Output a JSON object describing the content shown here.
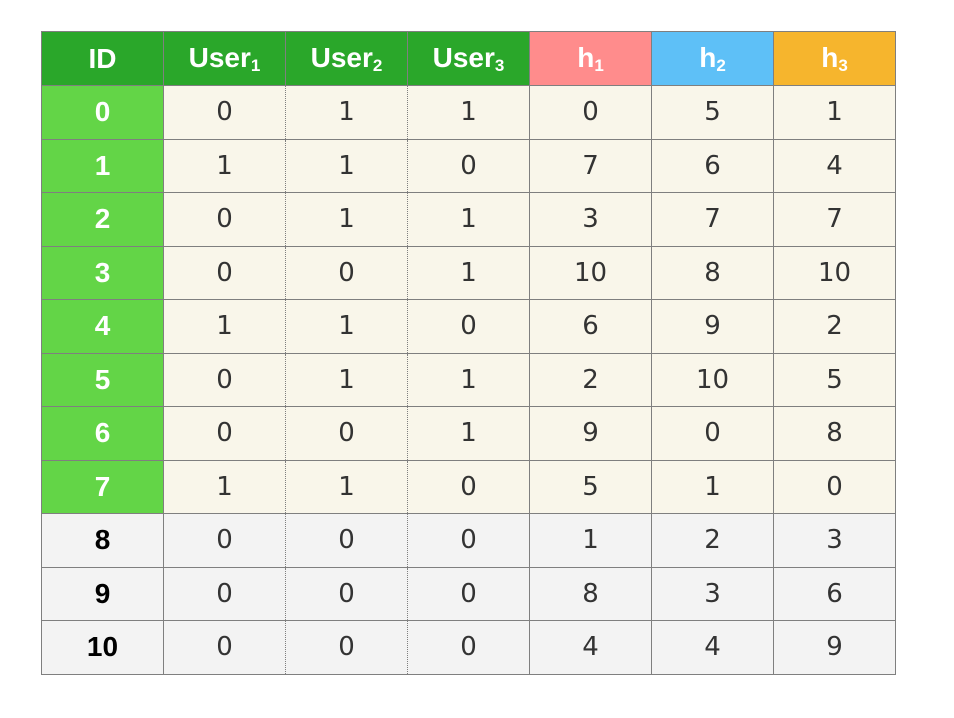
{
  "header": {
    "id": "ID",
    "user1": {
      "base": "User",
      "sub": "1"
    },
    "user2": {
      "base": "User",
      "sub": "2"
    },
    "user3": {
      "base": "User",
      "sub": "3"
    },
    "h1": {
      "base": "h",
      "sub": "1"
    },
    "h2": {
      "base": "h",
      "sub": "2"
    },
    "h3": {
      "base": "h",
      "sub": "3"
    }
  },
  "colors": {
    "header_green": "#2aa72a",
    "active_id_green": "#63d547",
    "h1_red": "#ff8c8c",
    "h2_blue": "#5ec0f7",
    "h3_orange": "#f6b52d",
    "active_cell_bg": "#f9f6ea",
    "inactive_bg": "#f3f3f3"
  },
  "active_row_count": 8,
  "rows": [
    {
      "id": "0",
      "user1": "0",
      "user2": "1",
      "user3": "1",
      "h1": "0",
      "h2": "5",
      "h3": "1"
    },
    {
      "id": "1",
      "user1": "1",
      "user2": "1",
      "user3": "0",
      "h1": "7",
      "h2": "6",
      "h3": "4"
    },
    {
      "id": "2",
      "user1": "0",
      "user2": "1",
      "user3": "1",
      "h1": "3",
      "h2": "7",
      "h3": "7"
    },
    {
      "id": "3",
      "user1": "0",
      "user2": "0",
      "user3": "1",
      "h1": "10",
      "h2": "8",
      "h3": "10"
    },
    {
      "id": "4",
      "user1": "1",
      "user2": "1",
      "user3": "0",
      "h1": "6",
      "h2": "9",
      "h3": "2"
    },
    {
      "id": "5",
      "user1": "0",
      "user2": "1",
      "user3": "1",
      "h1": "2",
      "h2": "10",
      "h3": "5"
    },
    {
      "id": "6",
      "user1": "0",
      "user2": "0",
      "user3": "1",
      "h1": "9",
      "h2": "0",
      "h3": "8"
    },
    {
      "id": "7",
      "user1": "1",
      "user2": "1",
      "user3": "0",
      "h1": "5",
      "h2": "1",
      "h3": "0"
    },
    {
      "id": "8",
      "user1": "0",
      "user2": "0",
      "user3": "0",
      "h1": "1",
      "h2": "2",
      "h3": "3"
    },
    {
      "id": "9",
      "user1": "0",
      "user2": "0",
      "user3": "0",
      "h1": "8",
      "h2": "3",
      "h3": "6"
    },
    {
      "id": "10",
      "user1": "0",
      "user2": "0",
      "user3": "0",
      "h1": "4",
      "h2": "4",
      "h3": "9"
    }
  ]
}
